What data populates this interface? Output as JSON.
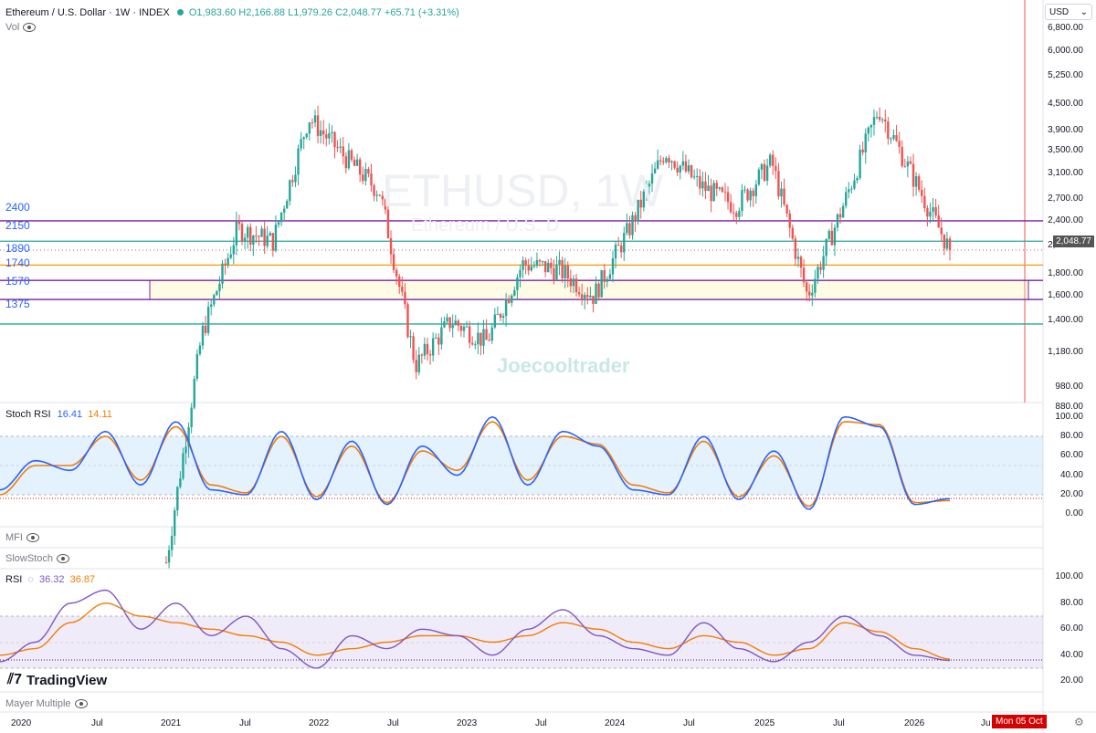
{
  "header": {
    "symbol_title": "Ethereum / U.S. Dollar · 1W · INDEX",
    "ohlc": "O1,983.60  H2,166.88  L1,979.26  C2,048.77  +65.71 (+3.31%)",
    "vol_label": "Vol",
    "currency": "USD"
  },
  "watermark": {
    "line1": "ETHUSD, 1W",
    "line2": "Ethereum / U.S. D",
    "author": "Joecooltrader"
  },
  "brand": {
    "logo_text": "TradingView"
  },
  "last_price_tag": "2,048.77",
  "date_cursor": "Mon 05 Oct",
  "price_levels": [
    {
      "label": "2400",
      "value": 2400,
      "color": "#7b1fa2"
    },
    {
      "label": "2150",
      "value": 2150,
      "color": "#26a69a"
    },
    {
      "label": "1890",
      "value": 1890,
      "color": "#ff9800"
    },
    {
      "label": "1740",
      "value": 1740,
      "color": "#7b1fa2"
    },
    {
      "label": "1570",
      "value": 1570,
      "color": "#7b1fa2"
    },
    {
      "label": "1375",
      "value": 1375,
      "color": "#26a69a"
    }
  ],
  "price_axis_ticks": [
    "6,800.00",
    "6,000.00",
    "5,250.00",
    "4,500.00",
    "3,900.00",
    "3,500.00",
    "3,100.00",
    "2,700.00",
    "2,400.00",
    "2,100.00",
    "1,800.00",
    "1,600.00",
    "1,400.00",
    "1,180.00",
    "980.00",
    "880.00"
  ],
  "time_axis": [
    "2020",
    "Jul",
    "2021",
    "Jul",
    "2022",
    "Jul",
    "2023",
    "Jul",
    "2024",
    "Jul",
    "2025",
    "Jul",
    "2026",
    "Ju"
  ],
  "indicators": {
    "stoch": {
      "name": "Stoch RSI",
      "k": "16.41",
      "d": "14.11",
      "ticks": [
        "100.00",
        "80.00",
        "60.00",
        "40.00",
        "20.00",
        "0.00"
      ]
    },
    "mfi": {
      "name": "MFI"
    },
    "slowstoch": {
      "name": "SlowStoch"
    },
    "rsi": {
      "name": "RSI",
      "v1": "36.32",
      "v2": "36.87",
      "ticks": [
        "100.00",
        "80.00",
        "60.00",
        "40.00",
        "20.00"
      ]
    },
    "mayer": {
      "name": "Mayer Multiple"
    }
  },
  "colors": {
    "up": "#26a69a",
    "down": "#ef5350",
    "stoch_k": "#2962ff",
    "stoch_d": "#f57c00",
    "rsi": "#7e57c2",
    "rsi_ma": "#f57c00"
  },
  "chart_data": [
    {
      "type": "candlestick",
      "title": "Ethereum / U.S. Dollar · 1W · INDEX",
      "ylabel": "USD",
      "y_scale": "log",
      "ylim": [
        780,
        7600
      ],
      "x": [
        "2020-10",
        "2021-01",
        "2021-04",
        "2021-07",
        "2021-10",
        "2022-01",
        "2022-04",
        "2022-07",
        "2022-10",
        "2023-01",
        "2023-04",
        "2023-07",
        "2023-10",
        "2024-01",
        "2024-04",
        "2024-07",
        "2024-10",
        "2025-01",
        "2025-04",
        "2025-07",
        "2025-10",
        "2026-01",
        "2026-03"
      ],
      "close": [
        380,
        1300,
        2300,
        2150,
        4200,
        3400,
        2800,
        1100,
        1400,
        1250,
        1900,
        1850,
        1600,
        2300,
        3500,
        2900,
        2600,
        3300,
        1600,
        2600,
        4400,
        3000,
        2049
      ],
      "last": {
        "open": 1983.6,
        "high": 2166.88,
        "low": 1979.26,
        "close": 2048.77,
        "change": 65.71,
        "change_pct": 3.31
      }
    },
    {
      "type": "line",
      "title": "Stoch RSI",
      "ylim": [
        0,
        100
      ],
      "bands": [
        20,
        80
      ],
      "series": [
        {
          "name": "K",
          "values": [
            25,
            55,
            45,
            85,
            30,
            95,
            25,
            20,
            85,
            15,
            75,
            10,
            70,
            40,
            100,
            30,
            85,
            70,
            25,
            20,
            80,
            15,
            65,
            5,
            100,
            90,
            10,
            16
          ]
        },
        {
          "name": "D",
          "values": [
            20,
            50,
            50,
            80,
            35,
            90,
            30,
            22,
            80,
            18,
            70,
            12,
            65,
            45,
            95,
            35,
            80,
            72,
            30,
            22,
            75,
            18,
            60,
            8,
            95,
            92,
            12,
            14
          ]
        }
      ]
    },
    {
      "type": "line",
      "title": "RSI",
      "ylim": [
        20,
        100
      ],
      "bands": [
        30,
        70
      ],
      "series": [
        {
          "name": "RSI",
          "values": [
            35,
            50,
            80,
            90,
            60,
            80,
            55,
            70,
            45,
            30,
            55,
            45,
            60,
            55,
            40,
            60,
            75,
            55,
            45,
            40,
            65,
            45,
            35,
            50,
            70,
            55,
            40,
            36
          ]
        },
        {
          "name": "MA",
          "values": [
            40,
            45,
            65,
            80,
            70,
            65,
            60,
            55,
            50,
            40,
            45,
            50,
            55,
            55,
            50,
            55,
            65,
            60,
            50,
            45,
            55,
            50,
            40,
            45,
            65,
            58,
            45,
            37
          ]
        }
      ]
    }
  ]
}
